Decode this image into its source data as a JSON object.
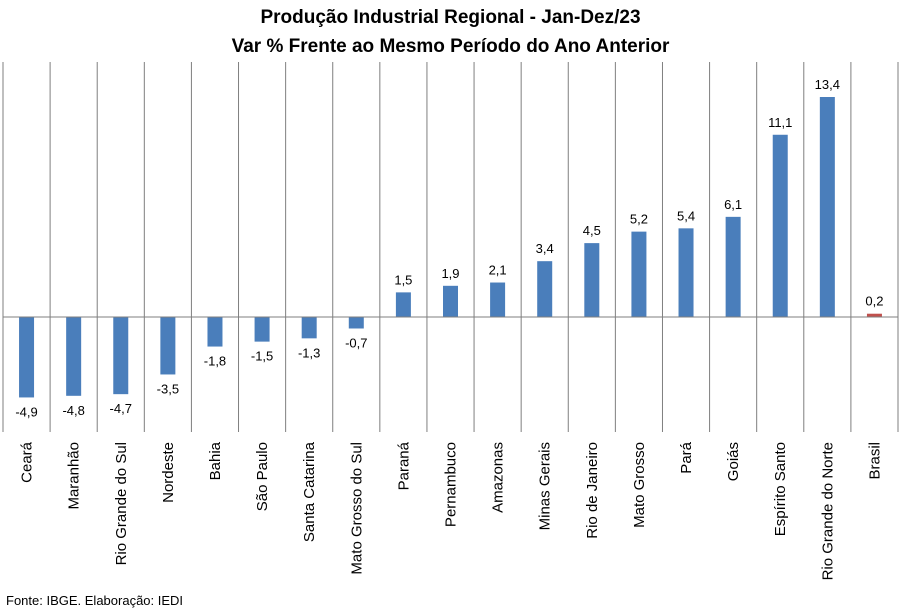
{
  "chart_data": {
    "type": "bar",
    "title": "Produção Industrial Regional - Jan-Dez/23",
    "subtitle": "Var % Frente ao Mesmo Período do Ano Anterior",
    "categories": [
      "Ceará",
      "Maranhão",
      "Rio Grande do Sul",
      "Nordeste",
      "Bahia",
      "São Paulo",
      "Santa Catarina",
      "Mato Grosso do Sul",
      "Paraná",
      "Pernambuco",
      "Amazonas",
      "Minas Gerais",
      "Rio de Janeiro",
      "Mato Grosso",
      "Pará",
      "Goiás",
      "Espírito Santo",
      "Rio Grande do Norte",
      "Brasil"
    ],
    "values": [
      -4.9,
      -4.8,
      -4.7,
      -3.5,
      -1.8,
      -1.5,
      -1.3,
      -0.7,
      1.5,
      1.9,
      2.1,
      3.4,
      4.5,
      5.2,
      5.4,
      6.1,
      11.1,
      13.4,
      0.2
    ],
    "data_labels": [
      "-4,9",
      "-4,8",
      "-4,7",
      "-3,5",
      "-1,8",
      "-1,5",
      "-1,3",
      "-0,7",
      "1,5",
      "1,9",
      "2,1",
      "3,4",
      "4,5",
      "5,2",
      "5,4",
      "6,1",
      "11,1",
      "13,4",
      "0,2"
    ],
    "bar_colors": [
      "#4a7ebb",
      "#4a7ebb",
      "#4a7ebb",
      "#4a7ebb",
      "#4a7ebb",
      "#4a7ebb",
      "#4a7ebb",
      "#4a7ebb",
      "#4a7ebb",
      "#4a7ebb",
      "#4a7ebb",
      "#4a7ebb",
      "#4a7ebb",
      "#4a7ebb",
      "#4a7ebb",
      "#4a7ebb",
      "#4a7ebb",
      "#4a7ebb",
      "#c0504d"
    ],
    "gridlines": "vertical category separators",
    "legend": "none"
  },
  "source_note": "Fonte: IBGE. Elaboração: IEDI"
}
